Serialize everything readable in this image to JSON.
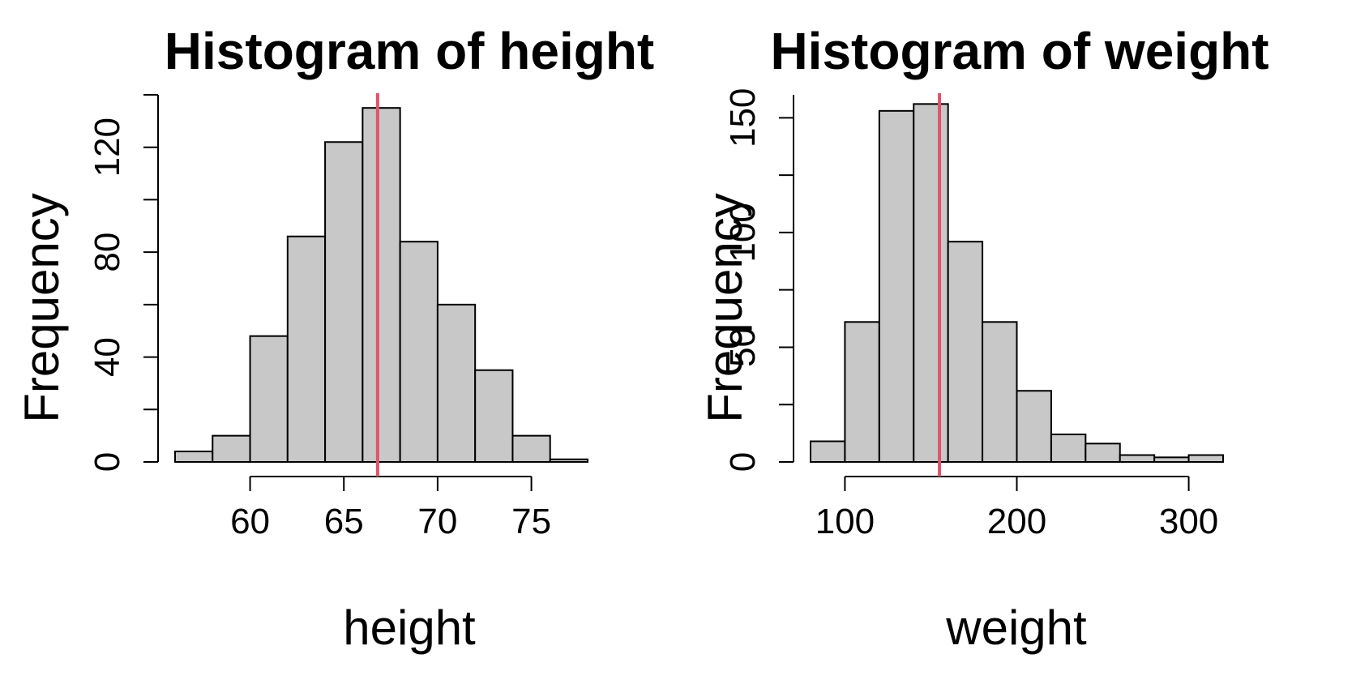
{
  "chart_data": [
    {
      "type": "bar",
      "title": "Histogram of height",
      "xlabel": "height",
      "ylabel": "Frequency",
      "bin_edges": [
        56,
        58,
        60,
        62,
        64,
        66,
        68,
        70,
        72,
        74,
        76,
        78
      ],
      "values": [
        4,
        10,
        48,
        86,
        122,
        135,
        84,
        60,
        35,
        10,
        1
      ],
      "xticks": [
        60,
        65,
        70,
        75
      ],
      "yticks": [
        0,
        40,
        80,
        120
      ],
      "ylim": [
        0,
        140
      ],
      "vline": {
        "x": 66.8,
        "color": "#DF536B"
      },
      "bar_color": "#C8C8C8"
    },
    {
      "type": "bar",
      "title": "Histogram of weight",
      "xlabel": "weight",
      "ylabel": "Frequency",
      "bin_edges": [
        80,
        100,
        120,
        140,
        160,
        180,
        200,
        220,
        240,
        260,
        280,
        300,
        320
      ],
      "values": [
        9,
        61,
        153,
        156,
        96,
        61,
        31,
        12,
        8,
        3,
        2,
        3
      ],
      "xticks": [
        100,
        200,
        300
      ],
      "yticks": [
        0,
        50,
        100,
        150
      ],
      "ylim": [
        0,
        160
      ],
      "vline": {
        "x": 155,
        "color": "#DF536B"
      },
      "bar_color": "#C8C8C8"
    }
  ]
}
